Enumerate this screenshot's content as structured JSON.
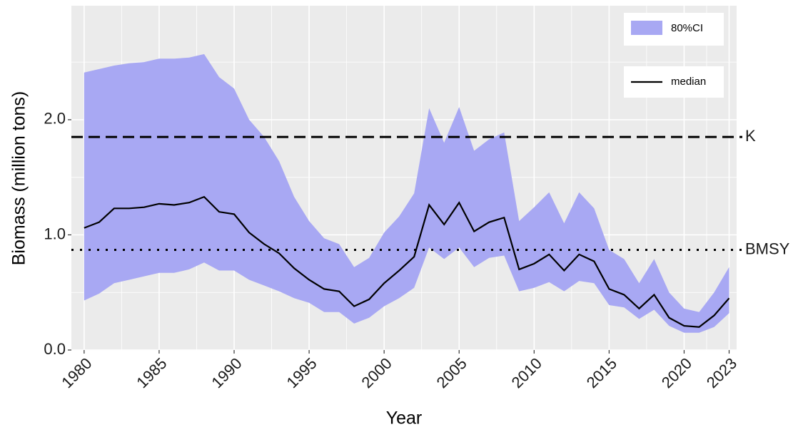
{
  "chart_data": {
    "type": "line",
    "x_label": "Year",
    "y_label": "Biomass (million tons)",
    "x": [
      1980,
      1981,
      1982,
      1983,
      1984,
      1985,
      1986,
      1987,
      1988,
      1989,
      1990,
      1991,
      1992,
      1993,
      1994,
      1995,
      1996,
      1997,
      1998,
      1999,
      2000,
      2001,
      2002,
      2003,
      2004,
      2005,
      2006,
      2007,
      2008,
      2009,
      2010,
      2011,
      2012,
      2013,
      2014,
      2015,
      2016,
      2017,
      2018,
      2019,
      2020,
      2021,
      2022,
      2023
    ],
    "series": [
      {
        "name": "median",
        "color": "#000000",
        "values": [
          1.06,
          1.11,
          1.23,
          1.23,
          1.24,
          1.27,
          1.26,
          1.28,
          1.33,
          1.2,
          1.18,
          1.02,
          0.92,
          0.84,
          0.71,
          0.61,
          0.53,
          0.51,
          0.38,
          0.44,
          0.58,
          0.69,
          0.81,
          1.26,
          1.09,
          1.28,
          1.03,
          1.11,
          1.15,
          0.7,
          0.75,
          0.83,
          0.69,
          0.83,
          0.77,
          0.53,
          0.48,
          0.36,
          0.48,
          0.28,
          0.21,
          0.2,
          0.3,
          0.45
        ]
      }
    ],
    "band": {
      "name": "80%CI",
      "color": "#a8a8f3",
      "upper": [
        2.41,
        2.44,
        2.47,
        2.49,
        2.5,
        2.53,
        2.53,
        2.54,
        2.57,
        2.37,
        2.27,
        2.0,
        1.85,
        1.64,
        1.33,
        1.12,
        0.97,
        0.92,
        0.72,
        0.8,
        1.02,
        1.16,
        1.36,
        2.1,
        1.8,
        2.11,
        1.73,
        1.83,
        1.89,
        1.12,
        1.24,
        1.37,
        1.1,
        1.37,
        1.23,
        0.87,
        0.79,
        0.58,
        0.79,
        0.5,
        0.36,
        0.33,
        0.5,
        0.72
      ],
      "lower": [
        0.43,
        0.49,
        0.58,
        0.61,
        0.64,
        0.67,
        0.67,
        0.7,
        0.76,
        0.69,
        0.69,
        0.61,
        0.56,
        0.51,
        0.45,
        0.41,
        0.33,
        0.33,
        0.23,
        0.28,
        0.38,
        0.45,
        0.54,
        0.89,
        0.79,
        0.89,
        0.72,
        0.8,
        0.82,
        0.51,
        0.54,
        0.59,
        0.51,
        0.6,
        0.58,
        0.39,
        0.37,
        0.27,
        0.35,
        0.21,
        0.15,
        0.15,
        0.2,
        0.32
      ]
    },
    "reference_lines": [
      {
        "label": "K",
        "value": 1.85,
        "style": "dashed"
      },
      {
        "label": "BMSY",
        "value": 0.87,
        "style": "dotted"
      }
    ],
    "xlim": [
      1979.15,
      2023.5
    ],
    "xticks": [
      1980,
      1985,
      1990,
      1995,
      2000,
      2005,
      2010,
      2015,
      2020,
      2023
    ],
    "ylim": [
      0,
      2.99
    ],
    "yticks": [
      {
        "value": 0,
        "label": "0.0"
      },
      {
        "value": 1,
        "label": "1.0"
      },
      {
        "value": 2,
        "label": "2.0"
      }
    ],
    "grid": true,
    "legend_position": "top-right"
  }
}
